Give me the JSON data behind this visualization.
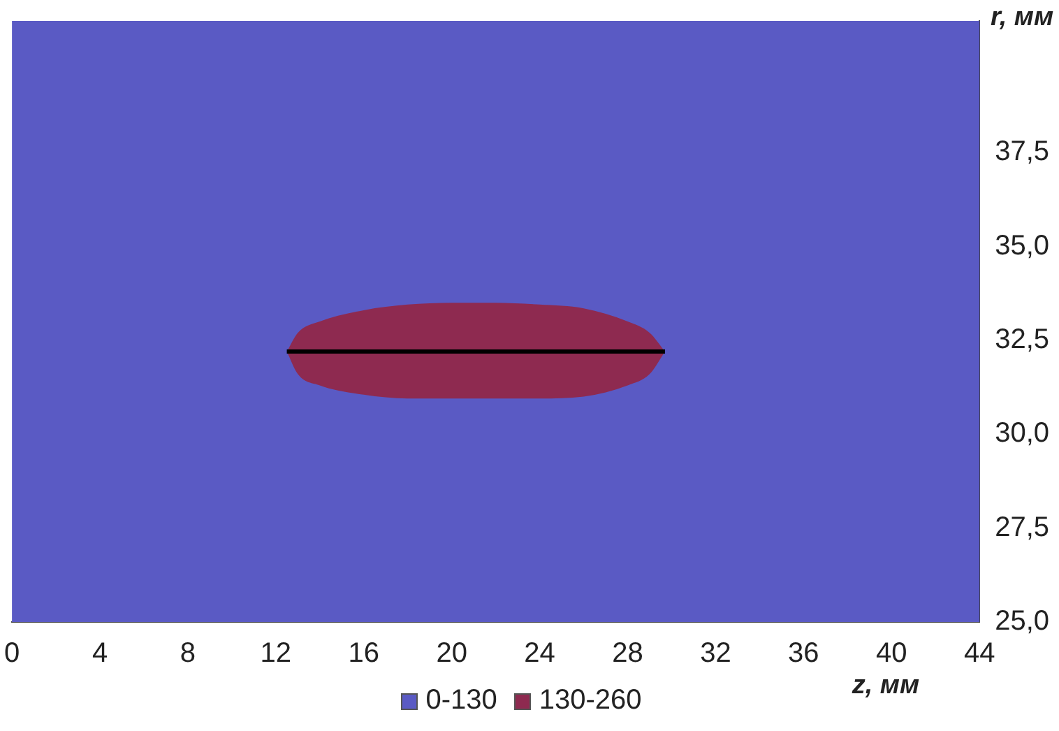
{
  "chart_data": {
    "type": "line",
    "xlabel": "z, мм",
    "ylabel": "r, мм",
    "xlim": [
      0,
      44
    ],
    "xticks": [
      0,
      4,
      8,
      12,
      16,
      20,
      24,
      28,
      32,
      36,
      40,
      44
    ],
    "ylim": [
      25,
      41
    ],
    "yticks": [
      {
        "value": 25,
        "label": "25,0"
      },
      {
        "value": 27.5,
        "label": "27,5"
      },
      {
        "value": 30,
        "label": "30,0"
      },
      {
        "value": 32.5,
        "label": "32,5"
      },
      {
        "value": 35,
        "label": "35,0"
      },
      {
        "value": 37.5,
        "label": "37,5"
      }
    ],
    "bands": [
      {
        "axis": "y",
        "from": 25,
        "to": 41,
        "label": "0-130",
        "color": "#5a5ac4"
      }
    ],
    "x": [
      12.5,
      13,
      14,
      16,
      18,
      20,
      22,
      24,
      26,
      28,
      29,
      29.7
    ],
    "series": [
      {
        "name": "130-260",
        "color": "#8e2a50",
        "values": [
          null,
          null,
          null,
          null,
          null,
          null,
          null,
          null,
          null,
          null,
          null,
          null
        ],
        "lower": [
          32.2,
          31.6,
          31.3,
          31.05,
          30.95,
          30.95,
          30.95,
          30.95,
          31.0,
          31.3,
          31.6,
          32.2
        ],
        "upper": [
          32.2,
          32.7,
          33.0,
          33.3,
          33.45,
          33.5,
          33.5,
          33.45,
          33.35,
          33.0,
          32.7,
          32.2
        ]
      },
      {
        "color": "#000000",
        "values": [
          32.2,
          32.2,
          32.2,
          32.2,
          32.2,
          32.2,
          32.2,
          32.2,
          32.2,
          32.2,
          32.2,
          32.2
        ]
      }
    ],
    "legend": "bottom"
  }
}
